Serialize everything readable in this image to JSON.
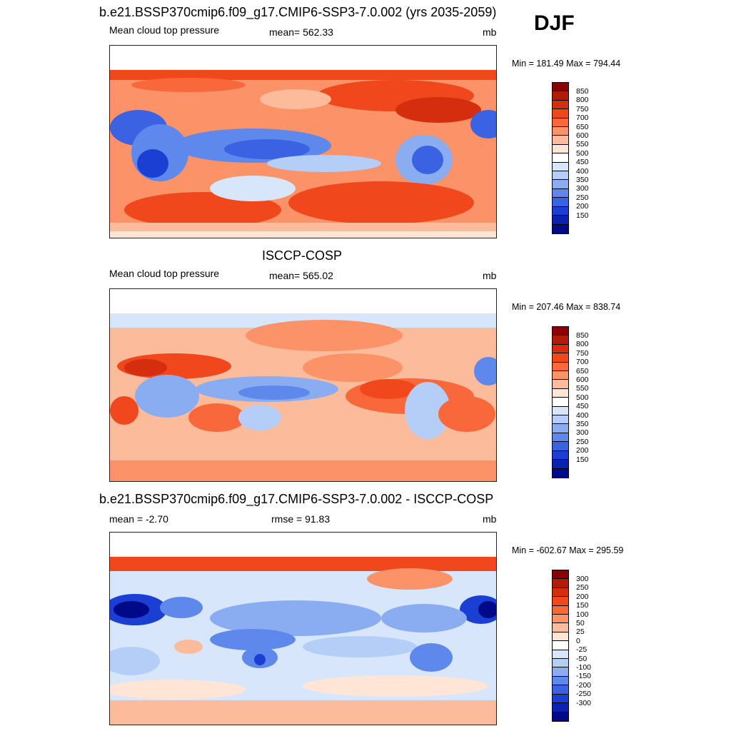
{
  "season": "DJF",
  "panels": [
    {
      "title": "b.e21.BSSP370cmip6.f09_g17.CMIP6-SSP3-7.0.002 (yrs 2035-2059)",
      "left_label": "Mean cloud top pressure",
      "center_label": "mean= 562.33",
      "units": "mb",
      "minmax": "Min = 181.49 Max = 794.44",
      "colorbar_labels": [
        "850",
        "800",
        "750",
        "700",
        "650",
        "600",
        "550",
        "500",
        "450",
        "400",
        "350",
        "300",
        "250",
        "200",
        "150"
      ]
    },
    {
      "title": "ISCCP-COSP",
      "left_label": "Mean cloud top pressure",
      "center_label": "mean= 565.02",
      "units": "mb",
      "minmax": "Min = 207.46 Max = 838.74",
      "colorbar_labels": [
        "850",
        "800",
        "750",
        "700",
        "650",
        "600",
        "550",
        "500",
        "450",
        "400",
        "350",
        "300",
        "250",
        "200",
        "150"
      ]
    },
    {
      "title": "b.e21.BSSP370cmip6.f09_g17.CMIP6-SSP3-7.0.002 - ISCCP-COSP",
      "left_label": "mean =  -2.70",
      "center_label": "rmse =  91.83",
      "units": "mb",
      "minmax": "Min = -602.67 Max = 295.59",
      "colorbar_labels": [
        "300",
        "250",
        "200",
        "150",
        "100",
        "50",
        "25",
        "0",
        "-25",
        "-50",
        "-100",
        "-150",
        "-200",
        "-250",
        "-300"
      ]
    }
  ],
  "colors": {
    "scale": [
      "#8b0000",
      "#b01c08",
      "#d42e0f",
      "#f0471c",
      "#f9683a",
      "#fb9268",
      "#fcbc9c",
      "#fee5d6",
      "#ffffff",
      "#d8e6fb",
      "#b4cef8",
      "#8aadf2",
      "#5e88ec",
      "#3a62e2",
      "#1a3fd2",
      "#0a22b0",
      "#000a88"
    ]
  }
}
